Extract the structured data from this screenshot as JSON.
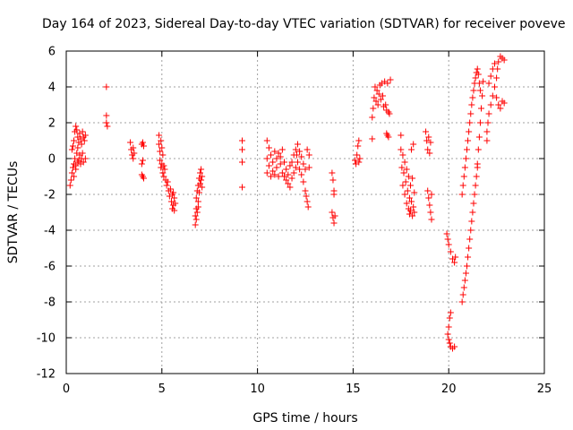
{
  "chart_data": {
    "type": "scatter",
    "title": "Day 164 of 2023, Sidereal Day-to-day VTEC variation (SDTVAR) for receiver poveve",
    "xlabel": "GPS time / hours",
    "ylabel": "SDTVAR / TECUs",
    "xlim": [
      0,
      25
    ],
    "ylim": [
      -12,
      6
    ],
    "xticks": [
      "0",
      "5",
      "10",
      "15",
      "20",
      "25"
    ],
    "yticks": [
      "-12",
      "-10",
      "-8",
      "-6",
      "-4",
      "-2",
      "0",
      "2",
      "4",
      "6"
    ],
    "grid": true,
    "marker": "plus",
    "color": "#ff0000",
    "series": [
      {
        "name": "SDTVAR",
        "points": [
          [
            0.2,
            -1.5
          ],
          [
            0.25,
            -1.2
          ],
          [
            0.3,
            -0.8
          ],
          [
            0.3,
            0.5
          ],
          [
            0.35,
            0.7
          ],
          [
            0.35,
            -0.5
          ],
          [
            0.4,
            1.0
          ],
          [
            0.4,
            -0.3
          ],
          [
            0.45,
            1.5
          ],
          [
            0.45,
            0.0
          ],
          [
            0.5,
            1.8
          ],
          [
            0.5,
            -0.6
          ],
          [
            0.55,
            1.6
          ],
          [
            0.55,
            0.3
          ],
          [
            0.6,
            1.2
          ],
          [
            0.6,
            -0.2
          ],
          [
            0.65,
            0.9
          ],
          [
            0.65,
            -0.1
          ],
          [
            0.7,
            1.4
          ],
          [
            0.7,
            0.2
          ],
          [
            0.75,
            1.1
          ],
          [
            0.75,
            -0.3
          ],
          [
            0.8,
            0.8
          ],
          [
            0.8,
            0.0
          ],
          [
            0.85,
            1.5
          ],
          [
            0.85,
            0.3
          ],
          [
            0.9,
            1.2
          ],
          [
            0.9,
            -0.2
          ],
          [
            0.95,
            1.0
          ],
          [
            1.0,
            1.3
          ],
          [
            1.0,
            0.0
          ],
          [
            0.4,
            -1.0
          ],
          [
            0.5,
            -0.4
          ],
          [
            0.6,
            0.6
          ],
          [
            2.1,
            4.0
          ],
          [
            2.1,
            2.4
          ],
          [
            2.1,
            2.0
          ],
          [
            2.15,
            1.8
          ],
          [
            3.35,
            0.9
          ],
          [
            3.4,
            0.5
          ],
          [
            3.45,
            0.2
          ],
          [
            3.5,
            0.6
          ],
          [
            3.5,
            0.0
          ],
          [
            3.55,
            0.3
          ],
          [
            3.95,
            0.8
          ],
          [
            4.0,
            0.9
          ],
          [
            4.05,
            0.7
          ],
          [
            3.95,
            -0.3
          ],
          [
            4.0,
            -0.1
          ],
          [
            3.95,
            -0.9
          ],
          [
            4.0,
            -1.0
          ],
          [
            4.05,
            -1.1
          ],
          [
            4.85,
            1.3
          ],
          [
            4.85,
            0.8
          ],
          [
            4.9,
            0.4
          ],
          [
            4.9,
            -0.1
          ],
          [
            4.95,
            1.0
          ],
          [
            4.95,
            -0.5
          ],
          [
            5.0,
            0.6
          ],
          [
            5.0,
            -0.3
          ],
          [
            5.05,
            0.2
          ],
          [
            5.05,
            -0.8
          ],
          [
            5.1,
            -0.4
          ],
          [
            5.1,
            -1.0
          ],
          [
            5.15,
            -0.6
          ],
          [
            5.2,
            -1.2
          ],
          [
            5.25,
            -1.5
          ],
          [
            5.3,
            -1.3
          ],
          [
            5.35,
            -1.8
          ],
          [
            5.4,
            -2.1
          ],
          [
            5.45,
            -1.7
          ],
          [
            5.5,
            -2.4
          ],
          [
            5.55,
            -2.0
          ],
          [
            5.55,
            -2.8
          ],
          [
            5.6,
            -2.6
          ],
          [
            5.6,
            -1.9
          ],
          [
            5.65,
            -2.9
          ],
          [
            5.65,
            -2.2
          ],
          [
            5.7,
            -2.5
          ],
          [
            6.75,
            -3.7
          ],
          [
            6.75,
            -3.2
          ],
          [
            6.8,
            -2.8
          ],
          [
            6.8,
            -2.2
          ],
          [
            6.85,
            -1.8
          ],
          [
            6.85,
            -3.0
          ],
          [
            6.9,
            -1.5
          ],
          [
            6.9,
            -2.4
          ],
          [
            6.95,
            -1.1
          ],
          [
            6.95,
            -1.9
          ],
          [
            7.0,
            -0.8
          ],
          [
            7.0,
            -1.4
          ],
          [
            7.05,
            -1.2
          ],
          [
            7.05,
            -0.6
          ],
          [
            7.1,
            -1.0
          ],
          [
            7.1,
            -1.6
          ],
          [
            6.8,
            -3.4
          ],
          [
            6.9,
            -2.7
          ],
          [
            9.2,
            1.0
          ],
          [
            9.2,
            0.5
          ],
          [
            9.2,
            -0.2
          ],
          [
            9.2,
            -1.6
          ],
          [
            10.5,
            1.0
          ],
          [
            10.5,
            0.0
          ],
          [
            10.5,
            -0.8
          ],
          [
            10.6,
            0.6
          ],
          [
            10.6,
            -0.4
          ],
          [
            10.7,
            0.2
          ],
          [
            10.7,
            -1.0
          ],
          [
            10.8,
            -0.2
          ],
          [
            10.8,
            -0.7
          ],
          [
            10.9,
            0.4
          ],
          [
            10.9,
            -0.9
          ],
          [
            11.0,
            0.0
          ],
          [
            11.0,
            -0.5
          ],
          [
            11.1,
            0.3
          ],
          [
            11.1,
            -1.0
          ],
          [
            11.2,
            -0.3
          ],
          [
            11.2,
            0.1
          ],
          [
            11.3,
            -0.8
          ],
          [
            11.3,
            0.5
          ],
          [
            11.4,
            -0.2
          ],
          [
            11.4,
            -1.0
          ],
          [
            11.5,
            -1.2
          ],
          [
            11.5,
            -0.6
          ],
          [
            11.6,
            -1.4
          ],
          [
            11.6,
            -0.9
          ],
          [
            11.7,
            -1.6
          ],
          [
            11.7,
            -0.4
          ],
          [
            11.8,
            -1.1
          ],
          [
            11.8,
            -0.2
          ],
          [
            11.9,
            -0.8
          ],
          [
            11.9,
            0.2
          ],
          [
            12.0,
            -0.5
          ],
          [
            12.0,
            0.5
          ],
          [
            12.05,
            0.2
          ],
          [
            12.1,
            -0.2
          ],
          [
            12.1,
            0.8
          ],
          [
            12.2,
            -0.6
          ],
          [
            12.2,
            0.4
          ],
          [
            12.3,
            -0.9
          ],
          [
            12.3,
            0.1
          ],
          [
            12.4,
            -1.3
          ],
          [
            12.4,
            -0.3
          ],
          [
            12.5,
            -1.8
          ],
          [
            12.5,
            -0.6
          ],
          [
            12.55,
            -2.1
          ],
          [
            12.6,
            -2.4
          ],
          [
            12.65,
            -2.7
          ],
          [
            12.7,
            -0.5
          ],
          [
            12.7,
            0.2
          ],
          [
            12.6,
            0.5
          ],
          [
            13.9,
            -0.8
          ],
          [
            13.95,
            -1.2
          ],
          [
            14.0,
            -1.8
          ],
          [
            14.0,
            -2.0
          ],
          [
            13.9,
            -3.0
          ],
          [
            13.95,
            -3.3
          ],
          [
            14.0,
            -3.6
          ],
          [
            14.05,
            -3.2
          ],
          [
            15.1,
            -0.1
          ],
          [
            15.15,
            -0.3
          ],
          [
            15.2,
            0.2
          ],
          [
            15.25,
            0.7
          ],
          [
            15.3,
            1.0
          ],
          [
            15.3,
            -0.2
          ],
          [
            15.35,
            0.0
          ],
          [
            16.0,
            1.1
          ],
          [
            16.0,
            2.3
          ],
          [
            16.05,
            2.8
          ],
          [
            16.1,
            3.4
          ],
          [
            16.15,
            4.0
          ],
          [
            16.2,
            3.2
          ],
          [
            16.25,
            3.8
          ],
          [
            16.3,
            3.0
          ],
          [
            16.35,
            3.6
          ],
          [
            16.4,
            4.1
          ],
          [
            16.45,
            3.3
          ],
          [
            16.5,
            4.2
          ],
          [
            16.55,
            3.5
          ],
          [
            16.6,
            2.9
          ],
          [
            16.65,
            4.3
          ],
          [
            16.7,
            3.0
          ],
          [
            16.75,
            2.7
          ],
          [
            16.8,
            4.2
          ],
          [
            16.85,
            2.6
          ],
          [
            16.9,
            2.5
          ],
          [
            16.95,
            4.4
          ],
          [
            16.75,
            1.4
          ],
          [
            16.8,
            1.3
          ],
          [
            16.85,
            1.2
          ],
          [
            17.5,
            1.3
          ],
          [
            17.5,
            0.5
          ],
          [
            17.55,
            -0.5
          ],
          [
            17.6,
            0.2
          ],
          [
            17.6,
            -1.5
          ],
          [
            17.65,
            -0.8
          ],
          [
            17.7,
            -2.0
          ],
          [
            17.7,
            -0.2
          ],
          [
            17.75,
            -1.3
          ],
          [
            17.8,
            -2.5
          ],
          [
            17.8,
            -0.6
          ],
          [
            17.85,
            -1.8
          ],
          [
            17.9,
            -2.8
          ],
          [
            17.9,
            -1.0
          ],
          [
            17.95,
            -3.1
          ],
          [
            17.95,
            -2.2
          ],
          [
            18.0,
            -1.5
          ],
          [
            18.0,
            -2.9
          ],
          [
            18.05,
            0.5
          ],
          [
            18.05,
            -2.4
          ],
          [
            18.1,
            -3.2
          ],
          [
            18.1,
            -1.1
          ],
          [
            18.15,
            0.8
          ],
          [
            18.15,
            -2.7
          ],
          [
            18.2,
            -1.9
          ],
          [
            18.2,
            -3.0
          ],
          [
            18.8,
            1.5
          ],
          [
            18.85,
            1.0
          ],
          [
            18.9,
            0.5
          ],
          [
            18.95,
            1.2
          ],
          [
            19.0,
            0.3
          ],
          [
            19.05,
            0.9
          ],
          [
            18.9,
            -1.8
          ],
          [
            18.95,
            -2.2
          ],
          [
            19.0,
            -2.6
          ],
          [
            19.05,
            -3.0
          ],
          [
            19.1,
            -3.4
          ],
          [
            19.1,
            -2.0
          ],
          [
            19.9,
            -4.2
          ],
          [
            19.95,
            -4.5
          ],
          [
            20.0,
            -4.8
          ],
          [
            20.1,
            -5.2
          ],
          [
            20.2,
            -5.6
          ],
          [
            20.3,
            -5.8
          ],
          [
            20.35,
            -5.5
          ],
          [
            20.05,
            -8.9
          ],
          [
            20.0,
            -9.4
          ],
          [
            19.95,
            -9.8
          ],
          [
            20.0,
            -10.1
          ],
          [
            20.05,
            -10.3
          ],
          [
            20.1,
            -10.5
          ],
          [
            20.2,
            -10.6
          ],
          [
            20.3,
            -10.5
          ],
          [
            20.1,
            -8.6
          ],
          [
            20.7,
            -8.0
          ],
          [
            20.75,
            -7.6
          ],
          [
            20.8,
            -7.2
          ],
          [
            20.85,
            -6.8
          ],
          [
            20.9,
            -6.4
          ],
          [
            20.95,
            -6.0
          ],
          [
            21.0,
            -5.5
          ],
          [
            21.05,
            -5.0
          ],
          [
            21.1,
            -4.5
          ],
          [
            21.15,
            -4.0
          ],
          [
            21.2,
            -3.5
          ],
          [
            21.25,
            -3.0
          ],
          [
            21.3,
            -2.5
          ],
          [
            21.35,
            -2.0
          ],
          [
            21.4,
            -1.5
          ],
          [
            21.45,
            -1.0
          ],
          [
            21.5,
            -0.5
          ],
          [
            20.7,
            -2.0
          ],
          [
            20.75,
            -1.5
          ],
          [
            20.8,
            -1.0
          ],
          [
            20.85,
            -0.5
          ],
          [
            20.9,
            0.0
          ],
          [
            20.95,
            0.5
          ],
          [
            21.0,
            1.0
          ],
          [
            21.05,
            1.5
          ],
          [
            21.1,
            2.0
          ],
          [
            21.15,
            2.5
          ],
          [
            21.2,
            3.0
          ],
          [
            21.25,
            3.4
          ],
          [
            21.3,
            3.8
          ],
          [
            21.35,
            4.2
          ],
          [
            21.4,
            4.5
          ],
          [
            21.45,
            4.8
          ],
          [
            21.5,
            5.0
          ],
          [
            21.55,
            4.7
          ],
          [
            21.6,
            4.2
          ],
          [
            21.65,
            3.8
          ],
          [
            21.5,
            -0.3
          ],
          [
            21.55,
            0.5
          ],
          [
            21.6,
            1.2
          ],
          [
            21.65,
            2.0
          ],
          [
            21.7,
            2.8
          ],
          [
            21.75,
            3.5
          ],
          [
            21.8,
            4.3
          ],
          [
            22.0,
            1.5
          ],
          [
            22.05,
            2.0
          ],
          [
            22.1,
            2.5
          ],
          [
            22.2,
            3.0
          ],
          [
            22.3,
            3.5
          ],
          [
            22.4,
            4.0
          ],
          [
            22.5,
            4.5
          ],
          [
            22.55,
            5.0
          ],
          [
            22.6,
            5.4
          ],
          [
            22.7,
            5.7
          ],
          [
            22.8,
            5.6
          ],
          [
            22.9,
            5.5
          ],
          [
            22.3,
            5.0
          ],
          [
            22.4,
            5.3
          ],
          [
            22.5,
            3.4
          ],
          [
            22.6,
            3.0
          ],
          [
            22.7,
            2.8
          ],
          [
            22.8,
            3.2
          ],
          [
            22.9,
            3.1
          ],
          [
            22.2,
            4.6
          ],
          [
            22.1,
            4.2
          ],
          [
            22.0,
            1.0
          ]
        ]
      }
    ]
  }
}
